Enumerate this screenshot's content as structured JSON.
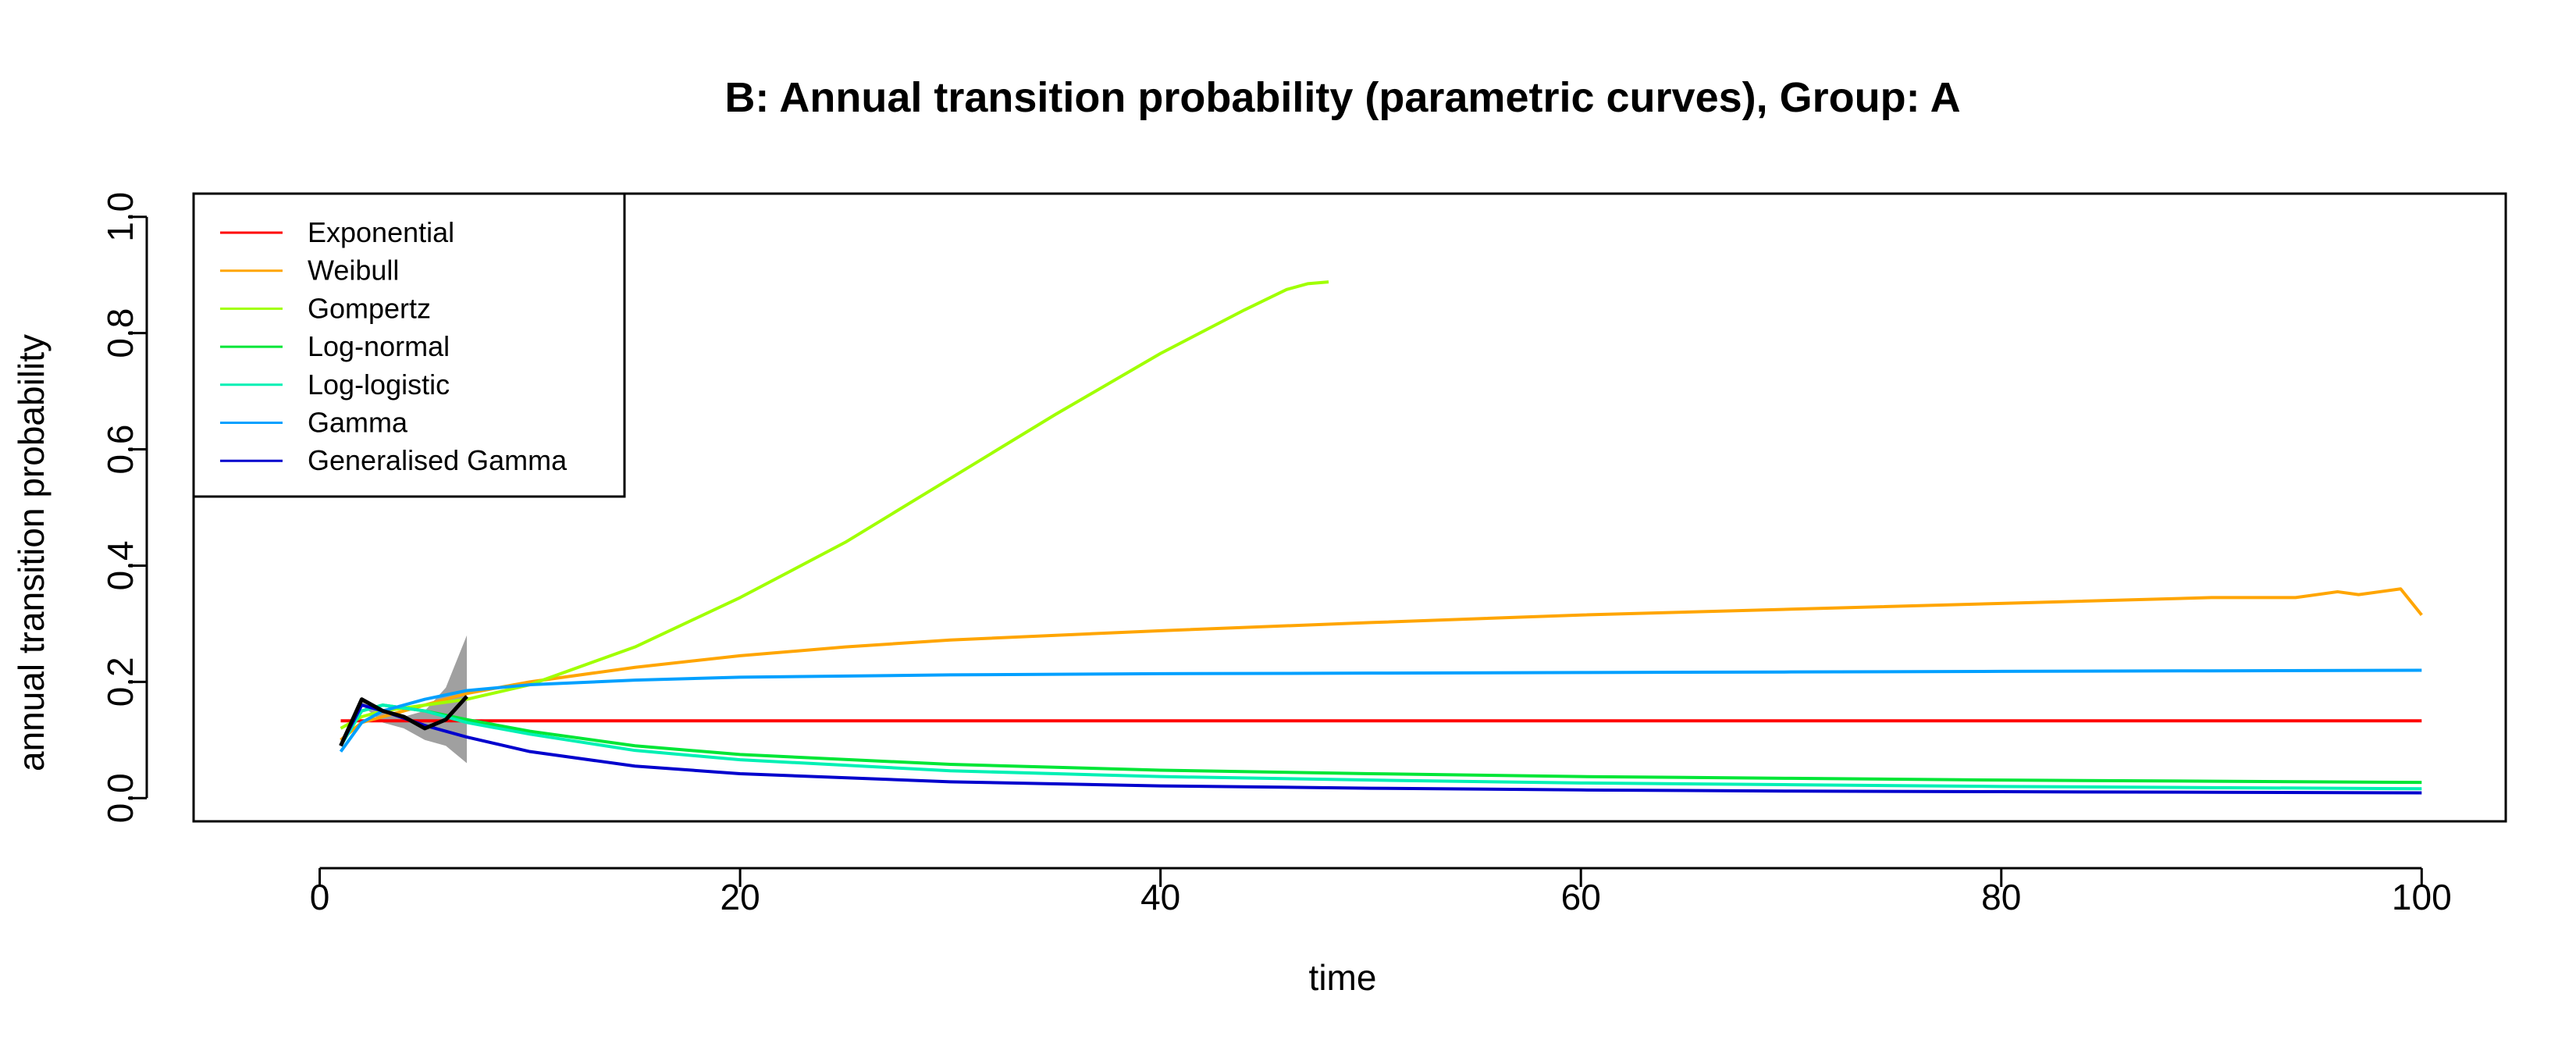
{
  "chart_data": {
    "type": "line",
    "title": "B: Annual transition probability (parametric curves), Group: A",
    "xlabel": "time",
    "ylabel": "annual transition probability",
    "xlim": [
      -6,
      104
    ],
    "ylim": [
      -0.04,
      1.04
    ],
    "x_ticks": [
      0,
      20,
      40,
      60,
      80,
      100
    ],
    "x_tick_labels": [
      "0",
      "20",
      "40",
      "60",
      "80",
      "100"
    ],
    "y_ticks": [
      0.0,
      0.2,
      0.4,
      0.6,
      0.8,
      1.0
    ],
    "y_tick_labels": [
      "0.0",
      "0.2",
      "0.4",
      "0.6",
      "0.8",
      "1.0"
    ],
    "grid": false,
    "legend_position": "top-left",
    "series": [
      {
        "name": "Exponential",
        "color": "#ff0000",
        "x": [
          1,
          100
        ],
        "y": [
          0.133,
          0.133
        ]
      },
      {
        "name": "Weibull",
        "color": "#ffa500",
        "x": [
          1,
          2,
          3,
          5,
          7,
          10,
          15,
          20,
          25,
          30,
          40,
          50,
          60,
          70,
          80,
          90,
          94,
          96,
          97,
          99,
          100
        ],
        "y": [
          0.1,
          0.13,
          0.14,
          0.16,
          0.18,
          0.2,
          0.225,
          0.245,
          0.26,
          0.272,
          0.288,
          0.302,
          0.315,
          0.325,
          0.335,
          0.345,
          0.345,
          0.355,
          0.35,
          0.36,
          0.315
        ]
      },
      {
        "name": "Gompertz",
        "color": "#a0ff00",
        "x": [
          1,
          2,
          3,
          5,
          7,
          10,
          15,
          20,
          25,
          30,
          35,
          40,
          44,
          46,
          47,
          48
        ],
        "y": [
          0.12,
          0.14,
          0.15,
          0.16,
          0.17,
          0.195,
          0.26,
          0.345,
          0.44,
          0.55,
          0.66,
          0.765,
          0.84,
          0.875,
          0.885,
          0.888
        ]
      },
      {
        "name": "Log-normal",
        "color": "#00e636",
        "x": [
          1,
          2,
          3,
          5,
          7,
          10,
          15,
          20,
          30,
          40,
          50,
          60,
          70,
          80,
          90,
          100
        ],
        "y": [
          0.09,
          0.15,
          0.16,
          0.15,
          0.135,
          0.115,
          0.09,
          0.075,
          0.058,
          0.048,
          0.042,
          0.037,
          0.034,
          0.031,
          0.029,
          0.027
        ]
      },
      {
        "name": "Log-logistic",
        "color": "#00f0b4",
        "x": [
          1,
          2,
          3,
          5,
          7,
          10,
          15,
          20,
          30,
          40,
          50,
          60,
          70,
          80,
          90,
          100
        ],
        "y": [
          0.09,
          0.15,
          0.16,
          0.15,
          0.13,
          0.11,
          0.082,
          0.066,
          0.047,
          0.037,
          0.031,
          0.026,
          0.023,
          0.02,
          0.018,
          0.016
        ]
      },
      {
        "name": "Gamma",
        "color": "#00a0ff",
        "x": [
          1,
          2,
          3,
          5,
          7,
          10,
          15,
          20,
          30,
          40,
          50,
          60,
          70,
          80,
          90,
          100
        ],
        "y": [
          0.08,
          0.13,
          0.15,
          0.17,
          0.185,
          0.195,
          0.203,
          0.208,
          0.212,
          0.214,
          0.215,
          0.216,
          0.217,
          0.218,
          0.219,
          0.22
        ]
      },
      {
        "name": "Generalised Gamma",
        "color": "#0000cd",
        "x": [
          1,
          2,
          3,
          5,
          7,
          10,
          15,
          20,
          30,
          40,
          50,
          60,
          70,
          80,
          90,
          100
        ],
        "y": [
          0.09,
          0.16,
          0.15,
          0.125,
          0.105,
          0.08,
          0.055,
          0.042,
          0.028,
          0.021,
          0.017,
          0.014,
          0.012,
          0.011,
          0.01,
          0.009
        ]
      }
    ],
    "observed": {
      "color": "#000000",
      "x": [
        1,
        2,
        3,
        4,
        5,
        6,
        7
      ],
      "y": [
        0.09,
        0.17,
        0.15,
        0.14,
        0.12,
        0.135,
        0.175
      ]
    },
    "confidence_band": {
      "color": "#a0a0a0",
      "x": [
        1,
        2,
        3,
        4,
        5,
        6,
        7
      ],
      "upper": [
        0.1,
        0.17,
        0.15,
        0.14,
        0.15,
        0.19,
        0.28
      ],
      "lower": [
        0.09,
        0.16,
        0.13,
        0.12,
        0.1,
        0.09,
        0.06
      ]
    }
  }
}
